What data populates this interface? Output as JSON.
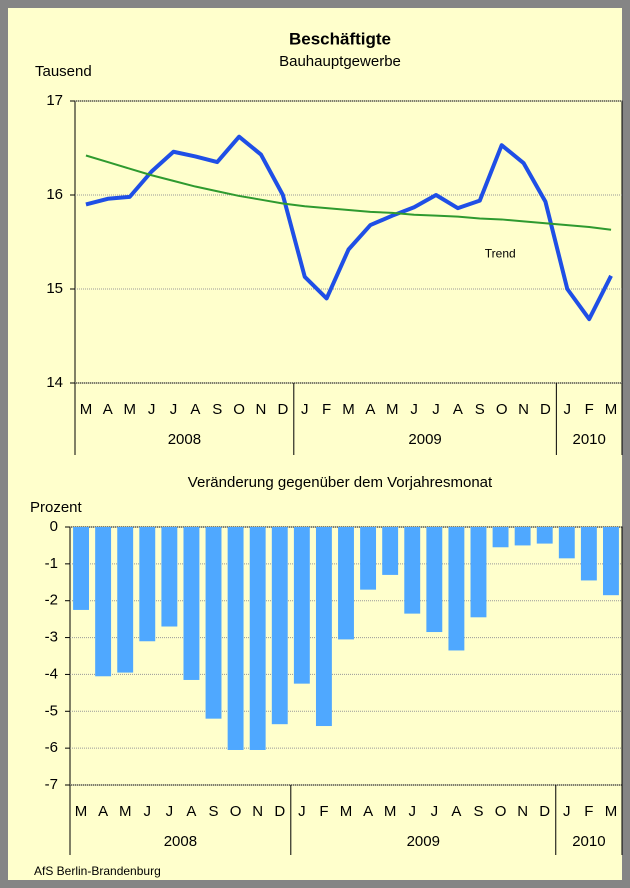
{
  "chart_data": [
    {
      "type": "line",
      "title": "Beschäftigte",
      "subtitle": "Bauhauptgewerbe",
      "y_label": "Tausend",
      "categories": [
        "M",
        "A",
        "M",
        "J",
        "J",
        "A",
        "S",
        "O",
        "N",
        "D",
        "J",
        "F",
        "M",
        "A",
        "M",
        "J",
        "J",
        "A",
        "S",
        "O",
        "N",
        "D",
        "J",
        "F",
        "M"
      ],
      "years": [
        {
          "label": "2008",
          "months": 10
        },
        {
          "label": "2009",
          "months": 12
        },
        {
          "label": "2010",
          "months": 3
        }
      ],
      "series": [
        {
          "color": "#1f4fe6",
          "values": [
            15.9,
            15.96,
            15.98,
            16.25,
            16.46,
            16.41,
            16.35,
            16.62,
            16.43,
            16.0,
            15.13,
            14.9,
            15.42,
            15.68,
            15.78,
            15.87,
            16.0,
            15.86,
            15.94,
            16.53,
            16.34,
            15.93,
            15.0,
            14.68,
            15.14
          ]
        },
        {
          "name": "Trend",
          "color": "#2f9a2f",
          "values": [
            16.42,
            16.35,
            16.28,
            16.21,
            16.15,
            16.09,
            16.04,
            15.99,
            15.95,
            15.91,
            15.88,
            15.86,
            15.84,
            15.82,
            15.81,
            15.79,
            15.78,
            15.77,
            15.75,
            15.74,
            15.72,
            15.7,
            15.68,
            15.66,
            15.63
          ]
        }
      ],
      "ylim": [
        14,
        17
      ],
      "yticks": [
        14,
        15,
        16,
        17
      ],
      "grid": true
    },
    {
      "type": "bar",
      "title": "Veränderung gegenüber dem Vorjahresmonat",
      "y_label": "Prozent",
      "categories": [
        "M",
        "A",
        "M",
        "J",
        "J",
        "A",
        "S",
        "O",
        "N",
        "D",
        "J",
        "F",
        "M",
        "A",
        "M",
        "J",
        "J",
        "A",
        "S",
        "O",
        "N",
        "D",
        "J",
        "F",
        "M"
      ],
      "years": [
        {
          "label": "2008",
          "months": 10
        },
        {
          "label": "2009",
          "months": 12
        },
        {
          "label": "2010",
          "months": 3
        }
      ],
      "color": "#4fa8ff",
      "values": [
        -2.25,
        -4.05,
        -3.95,
        -3.1,
        -2.7,
        -4.15,
        -5.2,
        -6.05,
        -6.05,
        -5.35,
        -4.25,
        -5.4,
        -3.05,
        -1.7,
        -1.3,
        -2.35,
        -2.85,
        -3.35,
        -2.45,
        -0.55,
        -0.5,
        -0.45,
        -0.85,
        -1.45,
        -1.85
      ],
      "ylim": [
        -7,
        0
      ],
      "yticks": [
        -7,
        -6,
        -5,
        -4,
        -3,
        -2,
        -1,
        0
      ],
      "grid": true
    }
  ],
  "source": "AfS Berlin-Brandenburg"
}
